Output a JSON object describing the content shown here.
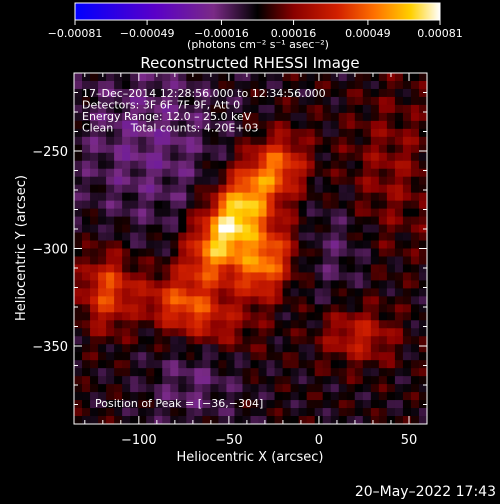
{
  "chart_data": {
    "type": "heatmap",
    "title": "Reconstructed RHESSI Image",
    "xlabel": "Heliocentric X (arcsec)",
    "ylabel": "Heliocentric Y (arcsec)",
    "xlim": [
      -136,
      60
    ],
    "ylim": [
      -390,
      -210
    ],
    "x_ticks": [
      -100,
      -50,
      0,
      50
    ],
    "x_tick_labels": [
      "−100",
      "−50",
      "0",
      "50"
    ],
    "y_ticks": [
      -250,
      -300,
      -350
    ],
    "y_tick_labels": [
      "−250",
      "−300",
      "−350"
    ],
    "colorbar": {
      "range": [
        -0.00081,
        0.00081
      ],
      "tick_values": [
        -0.00081,
        -0.00049,
        -0.00016,
        0.00016,
        0.00049,
        0.00081
      ],
      "tick_labels": [
        "−0.00081",
        "−0.00049",
        "−0.00016",
        "0.00016",
        "0.00049",
        "0.00081"
      ],
      "unit_label": "(photons cm⁻² s⁻¹ asec⁻²)"
    },
    "info_lines": [
      "17–Dec–2014 12:28:56.000 to 12:34:56.000",
      "Detectors: 3F 6F 7F 9F, Att 0",
      "Energy Range: 12.0 – 25.0 keV",
      "Clean     Total counts: 4.20E+03"
    ],
    "peak_label": "Position of Peak = [−36,−304]",
    "peak": [
      -36,
      -304
    ],
    "sources": [
      {
        "x": -48,
        "y": -287,
        "sx": 11,
        "sy": 26,
        "angle_deg": 35,
        "amp": 0.00078
      },
      {
        "x": -30,
        "y": -308,
        "sx": 10,
        "sy": 14,
        "angle_deg": 30,
        "amp": 0.00052
      },
      {
        "x": -118,
        "y": -322,
        "sx": 10,
        "sy": 14,
        "angle_deg": 0,
        "amp": 0.0004
      },
      {
        "x": -72,
        "y": -332,
        "sx": 22,
        "sy": 9,
        "angle_deg": 20,
        "amp": 0.00036
      },
      {
        "x": 22,
        "y": -345,
        "sx": 14,
        "sy": 10,
        "angle_deg": 0,
        "amp": 0.0003
      },
      {
        "x": -20,
        "y": -258,
        "sx": 10,
        "sy": 10,
        "angle_deg": 0,
        "amp": 0.00028
      }
    ],
    "timestamp": "20–May–2022 17:43"
  }
}
